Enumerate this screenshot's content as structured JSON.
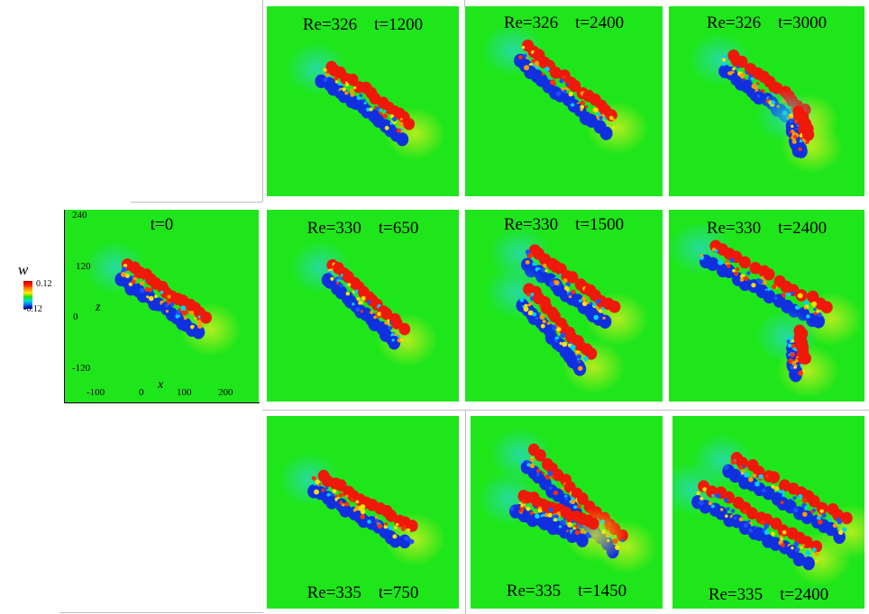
{
  "legend": {
    "title": "w",
    "max": "0.12",
    "min": "-0.12"
  },
  "axes": {
    "xlabel": "x",
    "ylabel": "z",
    "xticks": [
      "-100",
      "0",
      "100",
      "200"
    ],
    "yticks": [
      "240",
      "120",
      "0",
      "-120"
    ]
  },
  "initial": {
    "label": "t=0"
  },
  "rows": [
    {
      "panels": [
        {
          "label": "Re=326    t=1200"
        },
        {
          "label": "Re=326    t=2400"
        },
        {
          "label": "Re=326    t=3000"
        }
      ]
    },
    {
      "panels": [
        {
          "label": "Re=330    t=650"
        },
        {
          "label": "Re=330    t=1500"
        },
        {
          "label": "Re=330    t=2400"
        }
      ]
    },
    {
      "panels": [
        {
          "label": "Re=335    t=750"
        },
        {
          "label": "Re=335    t=1450"
        },
        {
          "label": "Re=335    t=2400"
        }
      ]
    }
  ]
}
